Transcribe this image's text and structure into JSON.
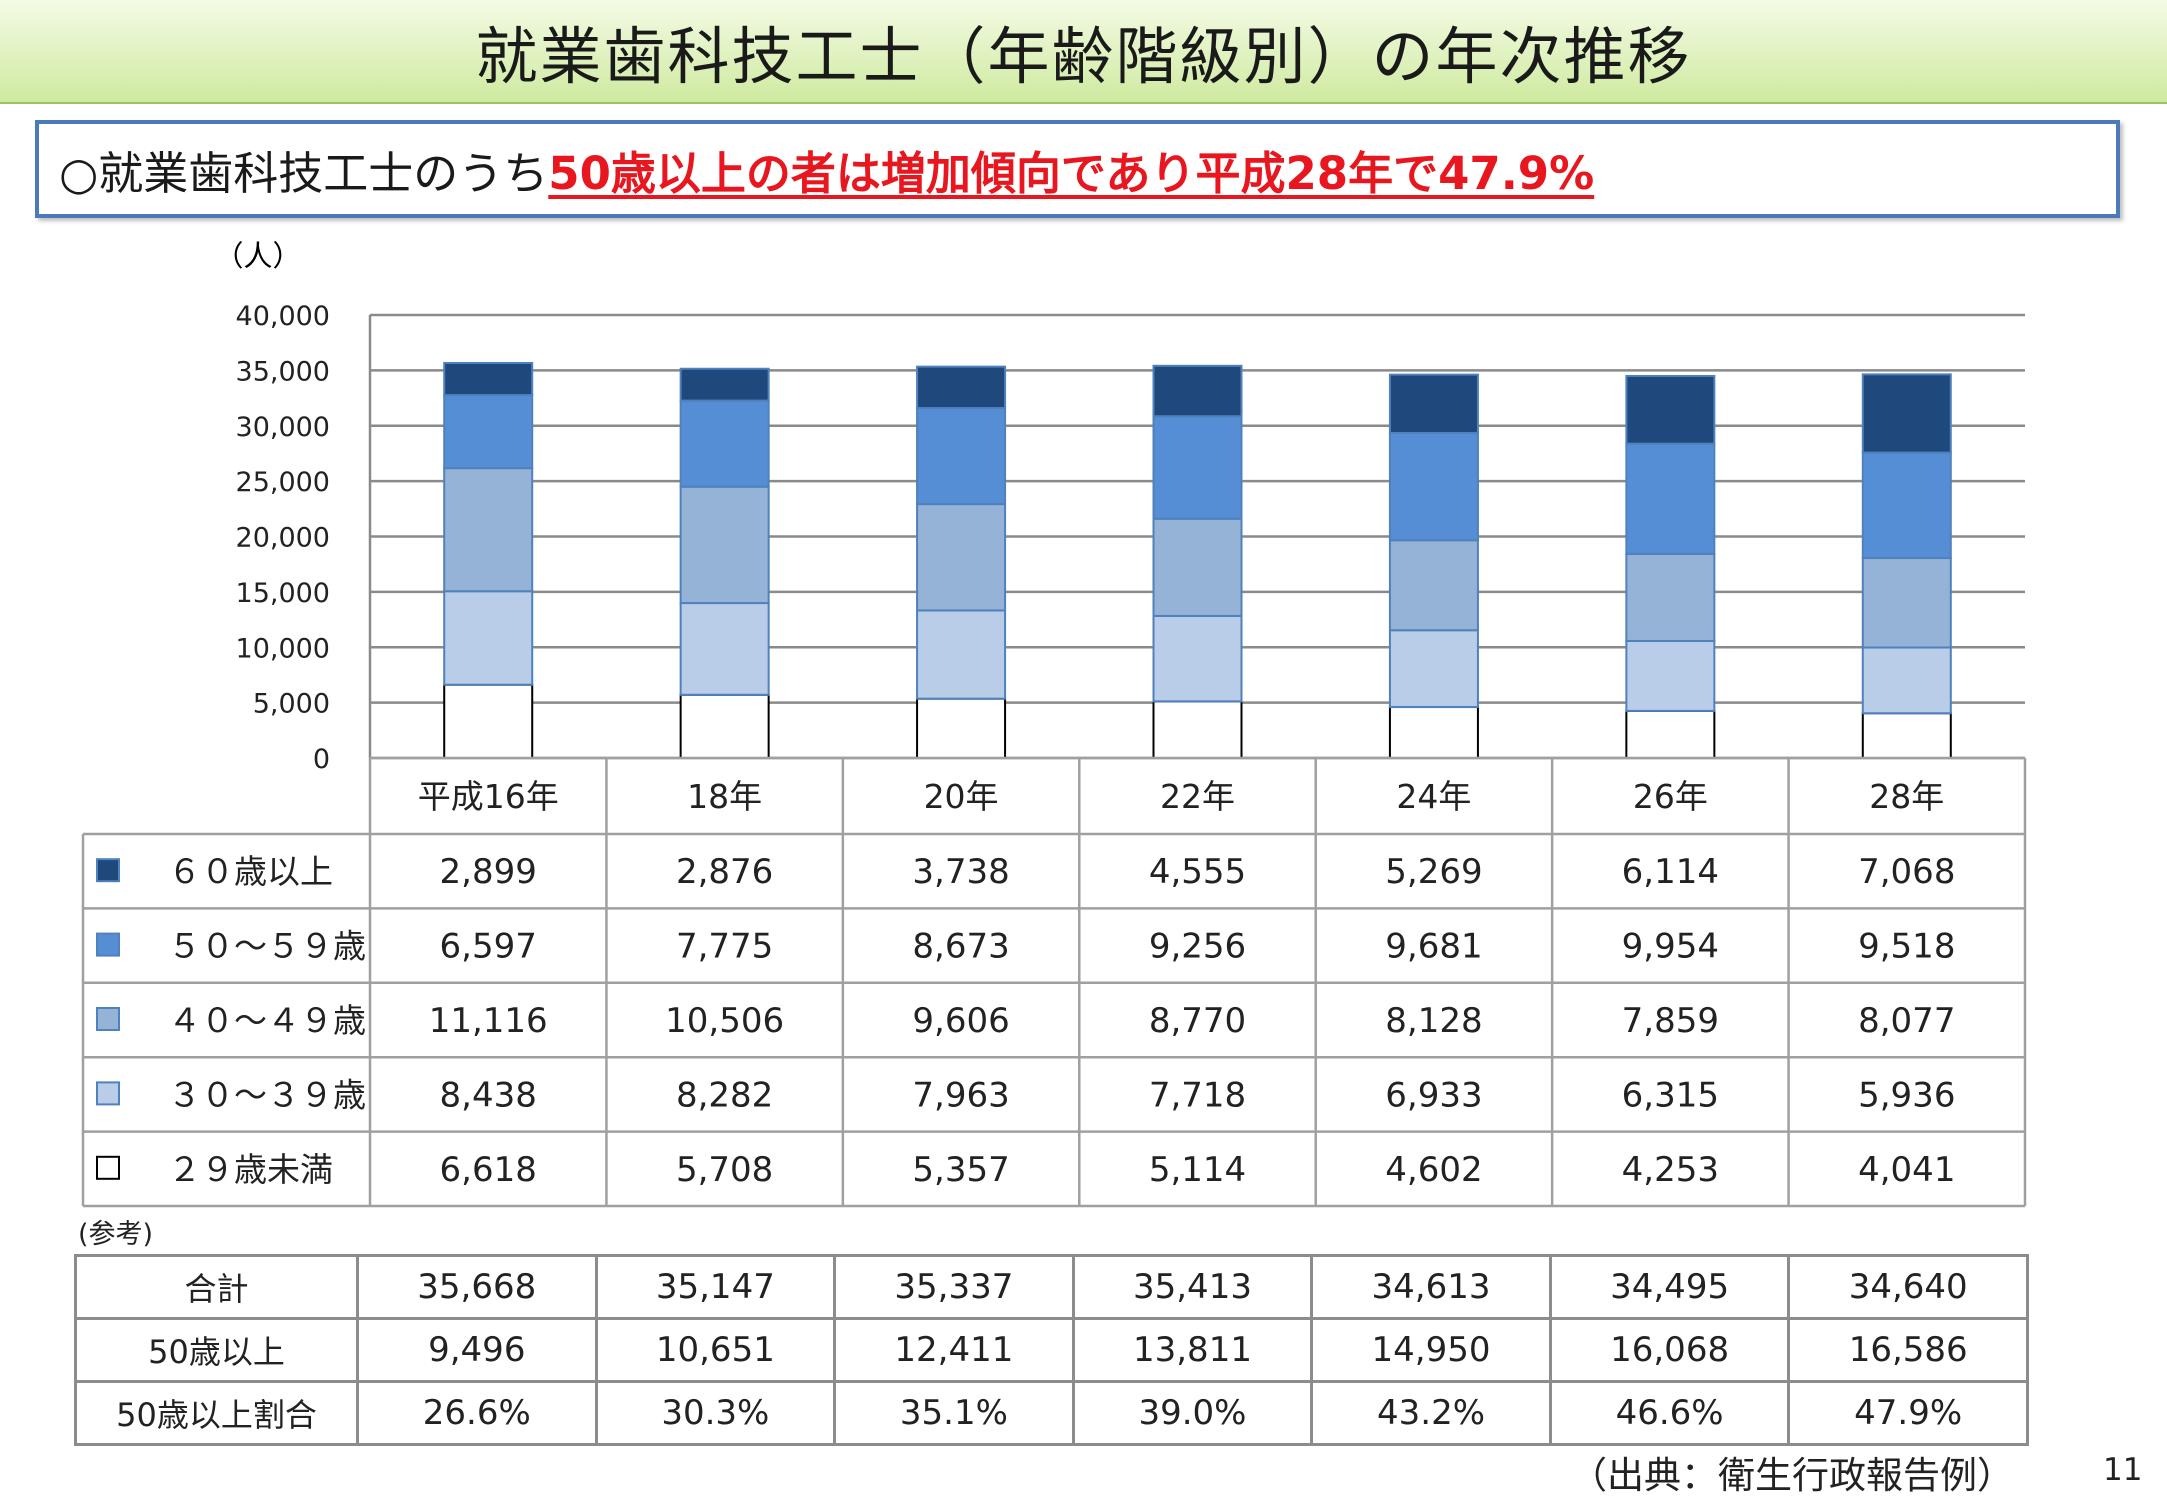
{
  "title": "就業歯科技工士（年齢階級別）の年次推移",
  "summary": {
    "lead": "○就業歯科技工士のうち",
    "highlight": "50歳以上の者は増加傾向であり平成28年で47.9%"
  },
  "chart_data": {
    "type": "bar",
    "stacked": true,
    "unit_label": "（人）",
    "ylim": [
      0,
      40000
    ],
    "yticks": [
      "0",
      "5,000",
      "10,000",
      "15,000",
      "20,000",
      "25,000",
      "30,000",
      "35,000",
      "40,000"
    ],
    "grid": true,
    "categories": [
      "平成16年",
      "18年",
      "20年",
      "22年",
      "24年",
      "26年",
      "28年"
    ],
    "series": [
      {
        "name": "２９歳未満",
        "color": "#ffffff",
        "values": [
          6618,
          5708,
          5357,
          5114,
          4602,
          4253,
          4041
        ],
        "labels": [
          "6,618",
          "5,708",
          "5,357",
          "5,114",
          "4,602",
          "4,253",
          "4,041"
        ]
      },
      {
        "name": "３０～３９歳",
        "color": "#b9cde8",
        "values": [
          8438,
          8282,
          7963,
          7718,
          6933,
          6315,
          5936
        ],
        "labels": [
          "8,438",
          "8,282",
          "7,963",
          "7,718",
          "6,933",
          "6,315",
          "5,936"
        ]
      },
      {
        "name": "４０～４９歳",
        "color": "#95b3d7",
        "values": [
          11116,
          10506,
          9606,
          8770,
          8128,
          7859,
          8077
        ],
        "labels": [
          "11,116",
          "10,506",
          "9,606",
          "8,770",
          "8,128",
          "7,859",
          "8,077"
        ]
      },
      {
        "name": "５０～５９歳",
        "color": "#558ed5",
        "values": [
          6597,
          7775,
          8673,
          9256,
          9681,
          9954,
          9518
        ],
        "labels": [
          "6,597",
          "7,775",
          "8,673",
          "9,256",
          "9,681",
          "9,954",
          "9,518"
        ]
      },
      {
        "name": "６０歳以上",
        "color": "#1f497d",
        "values": [
          2899,
          2876,
          3738,
          4555,
          5269,
          6114,
          7068
        ],
        "labels": [
          "2,899",
          "2,876",
          "3,738",
          "4,555",
          "5,269",
          "6,114",
          "7,068"
        ]
      }
    ]
  },
  "reference": {
    "label": "(参考)",
    "rows": [
      {
        "label": "合計",
        "values": [
          "35,668",
          "35,147",
          "35,337",
          "35,413",
          "34,613",
          "34,495",
          "34,640"
        ]
      },
      {
        "label": "50歳以上",
        "values": [
          "9,496",
          "10,651",
          "12,411",
          "13,811",
          "14,950",
          "16,068",
          "16,586"
        ]
      },
      {
        "label": "50歳以上割合",
        "values": [
          "26.6%",
          "30.3%",
          "35.1%",
          "39.0%",
          "43.2%",
          "46.6%",
          "47.9%"
        ]
      }
    ]
  },
  "source": "（出典：衛生行政報告例）",
  "page_number": "11"
}
